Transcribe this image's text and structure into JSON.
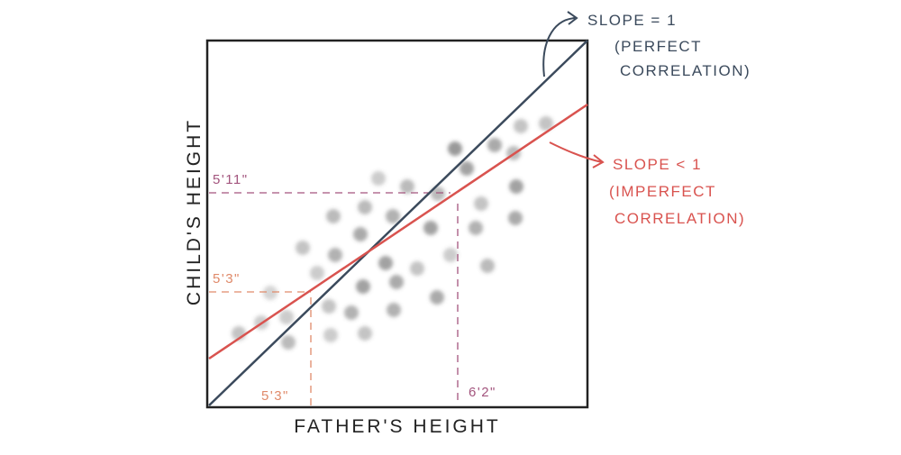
{
  "diagram": {
    "x_axis_label": "FATHER'S HEIGHT",
    "y_axis_label": "CHILD'S HEIGHT",
    "perfect_annotation": [
      "SLOPE = 1",
      "(PERFECT",
      "CORRELATION)"
    ],
    "imperfect_annotation": [
      "SLOPE < 1",
      "(IMPERFECT",
      "CORRELATION)"
    ],
    "y_reference_labels": [
      "5'11\"",
      "5'3\""
    ],
    "x_reference_labels": [
      "5'3\"",
      "6'2\""
    ]
  }
}
